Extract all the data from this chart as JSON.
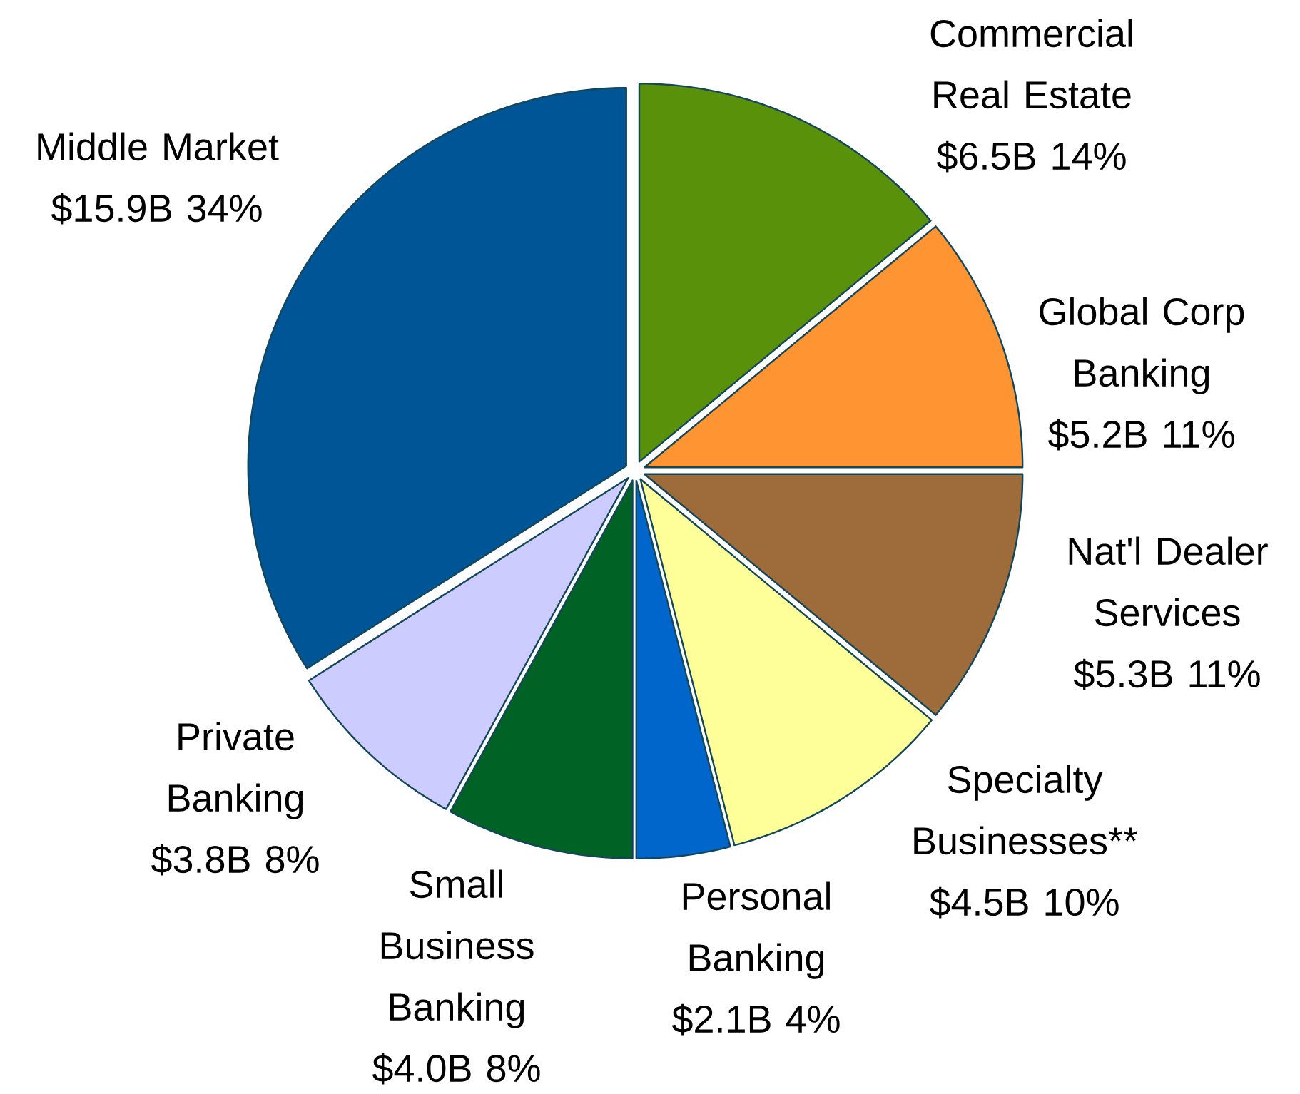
{
  "chart_data": {
    "type": "pie",
    "categories": [
      "Commercial Real Estate",
      "Global Corp Banking",
      "Nat'l Dealer Services",
      "Specialty Businesses**",
      "Personal Banking",
      "Small Business Banking",
      "Private Banking",
      "Middle Market"
    ],
    "values": [
      14,
      11,
      11,
      10,
      4,
      8,
      8,
      34
    ],
    "value_labels": [
      "$6.5B  14%",
      "$5.2B  11%",
      "$5.3B  11%",
      "$4.5B  10%",
      "$2.1B  4%",
      "$4.0B  8%",
      "$3.8B  8%",
      "$15.9B  34%"
    ],
    "colors": [
      "#5a910b",
      "#ff9433",
      "#9e6b3a",
      "#ffff99",
      "#0066cc",
      "#006325",
      "#ccccff",
      "#005596"
    ]
  }
}
